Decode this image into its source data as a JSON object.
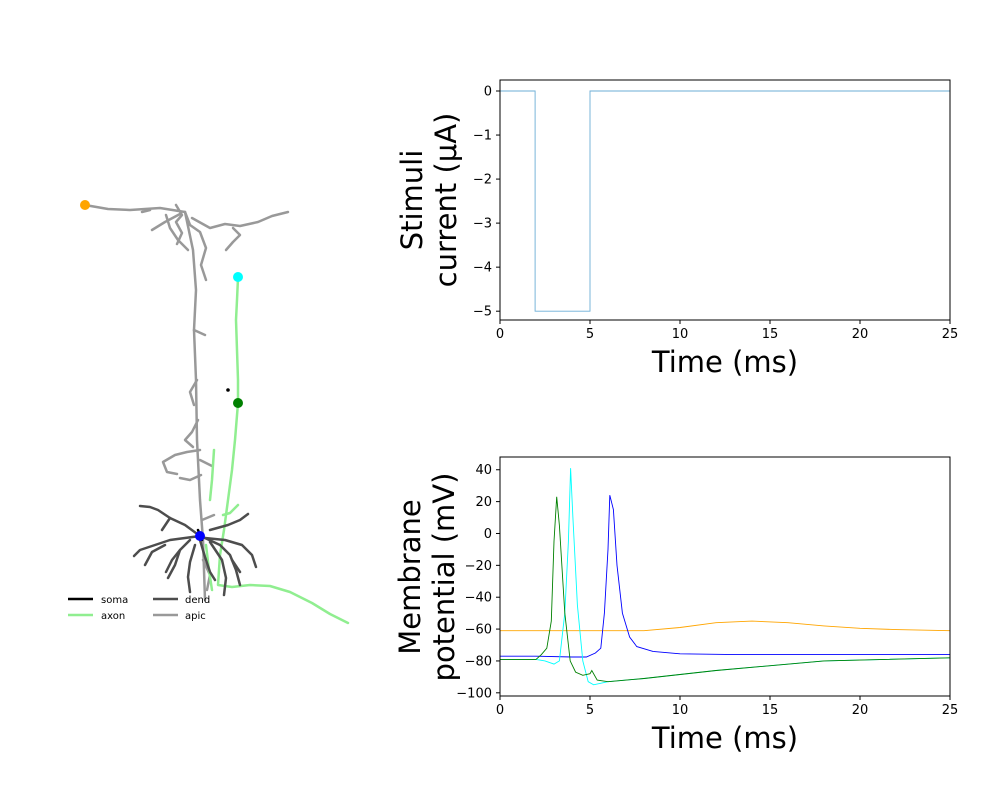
{
  "legend": {
    "items": [
      {
        "label": "soma",
        "color": "#000000"
      },
      {
        "label": "axon",
        "color": "#90ee90"
      },
      {
        "label": "dend",
        "color": "#4d4d4d"
      },
      {
        "label": "apic",
        "color": "#999999"
      }
    ]
  },
  "morphology": {
    "recording_sites": [
      {
        "color": "#ffa500"
      },
      {
        "color": "#00ffff"
      },
      {
        "color": "#008000"
      },
      {
        "color": "#0000ff"
      }
    ]
  },
  "chart_data": [
    {
      "type": "line",
      "xlabel": "Time (ms)",
      "ylabel_line1": "Stimuli",
      "ylabel_line2": "current (μA)",
      "xlim": [
        0,
        25
      ],
      "ylim": [
        -5.2,
        0.25
      ],
      "xticks": [
        0,
        5,
        10,
        15,
        20,
        25
      ],
      "yticks": [
        0,
        -1,
        -2,
        -3,
        -4,
        -5
      ],
      "xtick_labels": [
        "0",
        "5",
        "10",
        "15",
        "20",
        "25"
      ],
      "ytick_labels": [
        "0",
        "−1",
        "−2",
        "−3",
        "−4",
        "−5"
      ],
      "series": [
        {
          "color": "#6baed6",
          "x": [
            0,
            1.95,
            1.95,
            5.0,
            5.0,
            25
          ],
          "y": [
            0,
            0,
            -5,
            -5,
            0,
            0
          ]
        }
      ]
    },
    {
      "type": "line",
      "xlabel": "Time (ms)",
      "ylabel_line1": "Membrane",
      "ylabel_line2": "potential (mV)",
      "xlim": [
        0,
        25
      ],
      "ylim": [
        -102,
        48
      ],
      "xticks": [
        0,
        5,
        10,
        15,
        20,
        25
      ],
      "yticks": [
        40,
        20,
        0,
        -20,
        -40,
        -60,
        -80,
        -100
      ],
      "xtick_labels": [
        "0",
        "5",
        "10",
        "15",
        "20",
        "25"
      ],
      "ytick_labels": [
        "40",
        "20",
        "0",
        "−20",
        "−40",
        "−60",
        "−80",
        "−100"
      ],
      "series": [
        {
          "color": "#ffa500",
          "x": [
            0,
            2,
            4,
            6,
            8,
            10,
            12,
            14,
            16,
            18,
            20,
            22,
            25
          ],
          "y": [
            -61,
            -61,
            -61,
            -61,
            -61,
            -59,
            -56,
            -55,
            -56,
            -58,
            -59.5,
            -60.3,
            -61
          ]
        },
        {
          "color": "#0000ff",
          "x": [
            0,
            2,
            4,
            4.8,
            5.3,
            5.6,
            5.8,
            6.0,
            6.1,
            6.3,
            6.5,
            6.8,
            7.2,
            7.6,
            8.5,
            10,
            13,
            18,
            25
          ],
          "y": [
            -77,
            -77,
            -77.5,
            -77.5,
            -75,
            -72,
            -50,
            -10,
            24,
            15,
            -20,
            -50,
            -65,
            -71,
            -74,
            -75.5,
            -76,
            -76,
            -76
          ]
        },
        {
          "color": "#00ffff",
          "x": [
            0,
            2,
            2.5,
            3.0,
            3.3,
            3.6,
            3.8,
            3.92,
            4.05,
            4.3,
            4.6,
            4.9,
            5.2,
            6,
            8,
            12,
            18,
            25
          ],
          "y": [
            -79,
            -79,
            -80,
            -82,
            -80,
            -50,
            -5,
            41,
            10,
            -45,
            -80,
            -93,
            -95,
            -93,
            -91,
            -86,
            -80,
            -78
          ]
        },
        {
          "color": "#008000",
          "x": [
            0,
            2,
            2.3,
            2.6,
            2.85,
            3.0,
            3.15,
            3.3,
            3.6,
            3.9,
            4.2,
            4.6,
            5.0,
            5.1,
            5.4,
            6,
            8,
            12,
            18,
            25
          ],
          "y": [
            -79,
            -79,
            -76,
            -72,
            -55,
            -5,
            23,
            5,
            -50,
            -80,
            -87,
            -89,
            -88,
            -86,
            -92,
            -93,
            -91,
            -86,
            -80,
            -78
          ]
        }
      ]
    }
  ]
}
